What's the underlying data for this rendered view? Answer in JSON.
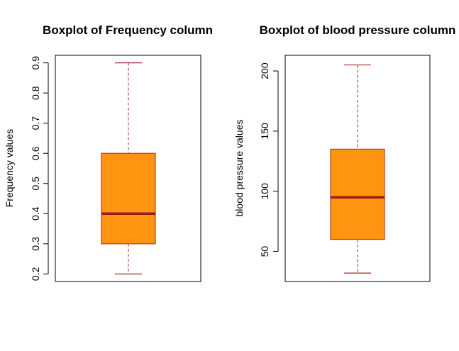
{
  "chart_data": [
    {
      "type": "boxplot",
      "title": "Boxplot of Frequency column",
      "xlabel": "",
      "ylabel": "Frequency values",
      "ylim": [
        0.175,
        0.925
      ],
      "ticks": [
        "0.2",
        "0.3",
        "0.4",
        "0.5",
        "0.6",
        "0.7",
        "0.8",
        "0.9"
      ],
      "box": {
        "min": 0.2,
        "q1": 0.3,
        "median": 0.4,
        "q3": 0.6,
        "max": 0.9
      },
      "box_fill": "#ff9410",
      "box_border": "#b04020",
      "median_color": "#9b1c1c",
      "whisker_color": "#a52a2a",
      "grid": false
    },
    {
      "type": "boxplot",
      "title": "Boxplot of blood pressure column",
      "xlabel": "",
      "ylabel": "blood pressure values",
      "ylim": [
        25,
        213
      ],
      "ticks": [
        "50",
        "100",
        "150",
        "200"
      ],
      "box": {
        "min": 32,
        "q1": 60,
        "median": 95,
        "q3": 135,
        "max": 205
      },
      "box_fill": "#ff9410",
      "box_border": "#b04020",
      "median_color": "#9b1c1c",
      "whisker_color": "#a52a2a",
      "grid": false
    }
  ]
}
